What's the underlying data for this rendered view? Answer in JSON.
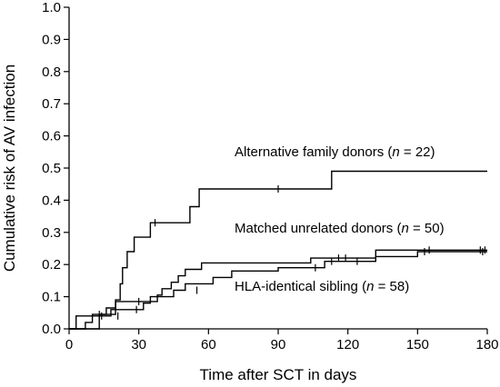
{
  "chart_data": {
    "type": "line",
    "step": true,
    "xlabel": "Time after SCT in days",
    "ylabel": "Cumulative risk of AV infection",
    "xlim": [
      0,
      180
    ],
    "ylim": [
      0,
      1.0
    ],
    "x_ticks": [
      0,
      30,
      60,
      90,
      120,
      150,
      180
    ],
    "x_tick_labels": [
      "0",
      "30",
      "60",
      "90",
      "120",
      "150",
      "180"
    ],
    "y_ticks": [
      0,
      0.1,
      0.2,
      0.3,
      0.4,
      0.5,
      0.6,
      0.7,
      0.8,
      0.9,
      1.0
    ],
    "y_tick_labels": [
      "0.0",
      "0.1",
      "0.2",
      "0.3",
      "0.4",
      "0.5",
      "0.6",
      "0.7",
      "0.8",
      "0.9",
      "1.0"
    ],
    "grid": false,
    "series": [
      {
        "name": "Alternative family donors",
        "label_prefix": "Alternative family donors (",
        "label_var": "n",
        "label_suffix": " = 22)",
        "points": [
          [
            0,
            0
          ],
          [
            13,
            0
          ],
          [
            13,
            0.045
          ],
          [
            20,
            0.045
          ],
          [
            20,
            0.09
          ],
          [
            22,
            0.09
          ],
          [
            22,
            0.14
          ],
          [
            23,
            0.14
          ],
          [
            23,
            0.19
          ],
          [
            25,
            0.19
          ],
          [
            25,
            0.24
          ],
          [
            28,
            0.24
          ],
          [
            28,
            0.285
          ],
          [
            35,
            0.285
          ],
          [
            35,
            0.33
          ],
          [
            52,
            0.33
          ],
          [
            52,
            0.38
          ],
          [
            56,
            0.38
          ],
          [
            56,
            0.435
          ],
          [
            113,
            0.435
          ],
          [
            113,
            0.49
          ],
          [
            180,
            0.49
          ]
        ],
        "censors": [
          [
            37,
            0.33
          ],
          [
            90,
            0.435
          ]
        ]
      },
      {
        "name": "Matched unrelated donors",
        "label_prefix": "Matched unrelated donors (",
        "label_var": "n",
        "label_suffix": " = 50)",
        "points": [
          [
            0,
            0
          ],
          [
            7,
            0
          ],
          [
            7,
            0.02
          ],
          [
            10,
            0.02
          ],
          [
            10,
            0.045
          ],
          [
            16,
            0.045
          ],
          [
            16,
            0.065
          ],
          [
            20,
            0.065
          ],
          [
            20,
            0.085
          ],
          [
            38,
            0.085
          ],
          [
            38,
            0.105
          ],
          [
            40,
            0.105
          ],
          [
            40,
            0.125
          ],
          [
            44,
            0.125
          ],
          [
            44,
            0.145
          ],
          [
            47,
            0.145
          ],
          [
            47,
            0.165
          ],
          [
            50,
            0.165
          ],
          [
            50,
            0.185
          ],
          [
            57,
            0.185
          ],
          [
            57,
            0.205
          ],
          [
            104,
            0.205
          ],
          [
            104,
            0.22
          ],
          [
            132,
            0.22
          ],
          [
            132,
            0.245
          ],
          [
            180,
            0.245
          ]
        ],
        "censors": [
          [
            13,
            0.045
          ],
          [
            30,
            0.085
          ],
          [
            116,
            0.22
          ],
          [
            119,
            0.22
          ],
          [
            155,
            0.245
          ],
          [
            177,
            0.245
          ],
          [
            179,
            0.245
          ]
        ]
      },
      {
        "name": "HLA-identical sibling",
        "label_prefix": "HLA-identical sibling (",
        "label_var": "n",
        "label_suffix": " = 58)",
        "points": [
          [
            0,
            0
          ],
          [
            3,
            0
          ],
          [
            3,
            0.04
          ],
          [
            18,
            0.04
          ],
          [
            18,
            0.06
          ],
          [
            32,
            0.06
          ],
          [
            32,
            0.08
          ],
          [
            35,
            0.08
          ],
          [
            35,
            0.1
          ],
          [
            45,
            0.1
          ],
          [
            45,
            0.12
          ],
          [
            50,
            0.12
          ],
          [
            50,
            0.14
          ],
          [
            62,
            0.14
          ],
          [
            62,
            0.16
          ],
          [
            70,
            0.16
          ],
          [
            70,
            0.18
          ],
          [
            90,
            0.18
          ],
          [
            90,
            0.19
          ],
          [
            110,
            0.19
          ],
          [
            110,
            0.21
          ],
          [
            132,
            0.21
          ],
          [
            132,
            0.225
          ],
          [
            150,
            0.225
          ],
          [
            150,
            0.24
          ],
          [
            180,
            0.24
          ]
        ],
        "censors": [
          [
            14,
            0.04
          ],
          [
            21,
            0.04
          ],
          [
            29,
            0.06
          ],
          [
            55,
            0.12
          ],
          [
            106,
            0.19
          ],
          [
            113,
            0.21
          ],
          [
            124,
            0.21
          ],
          [
            153,
            0.24
          ],
          [
            178,
            0.24
          ]
        ]
      }
    ]
  }
}
